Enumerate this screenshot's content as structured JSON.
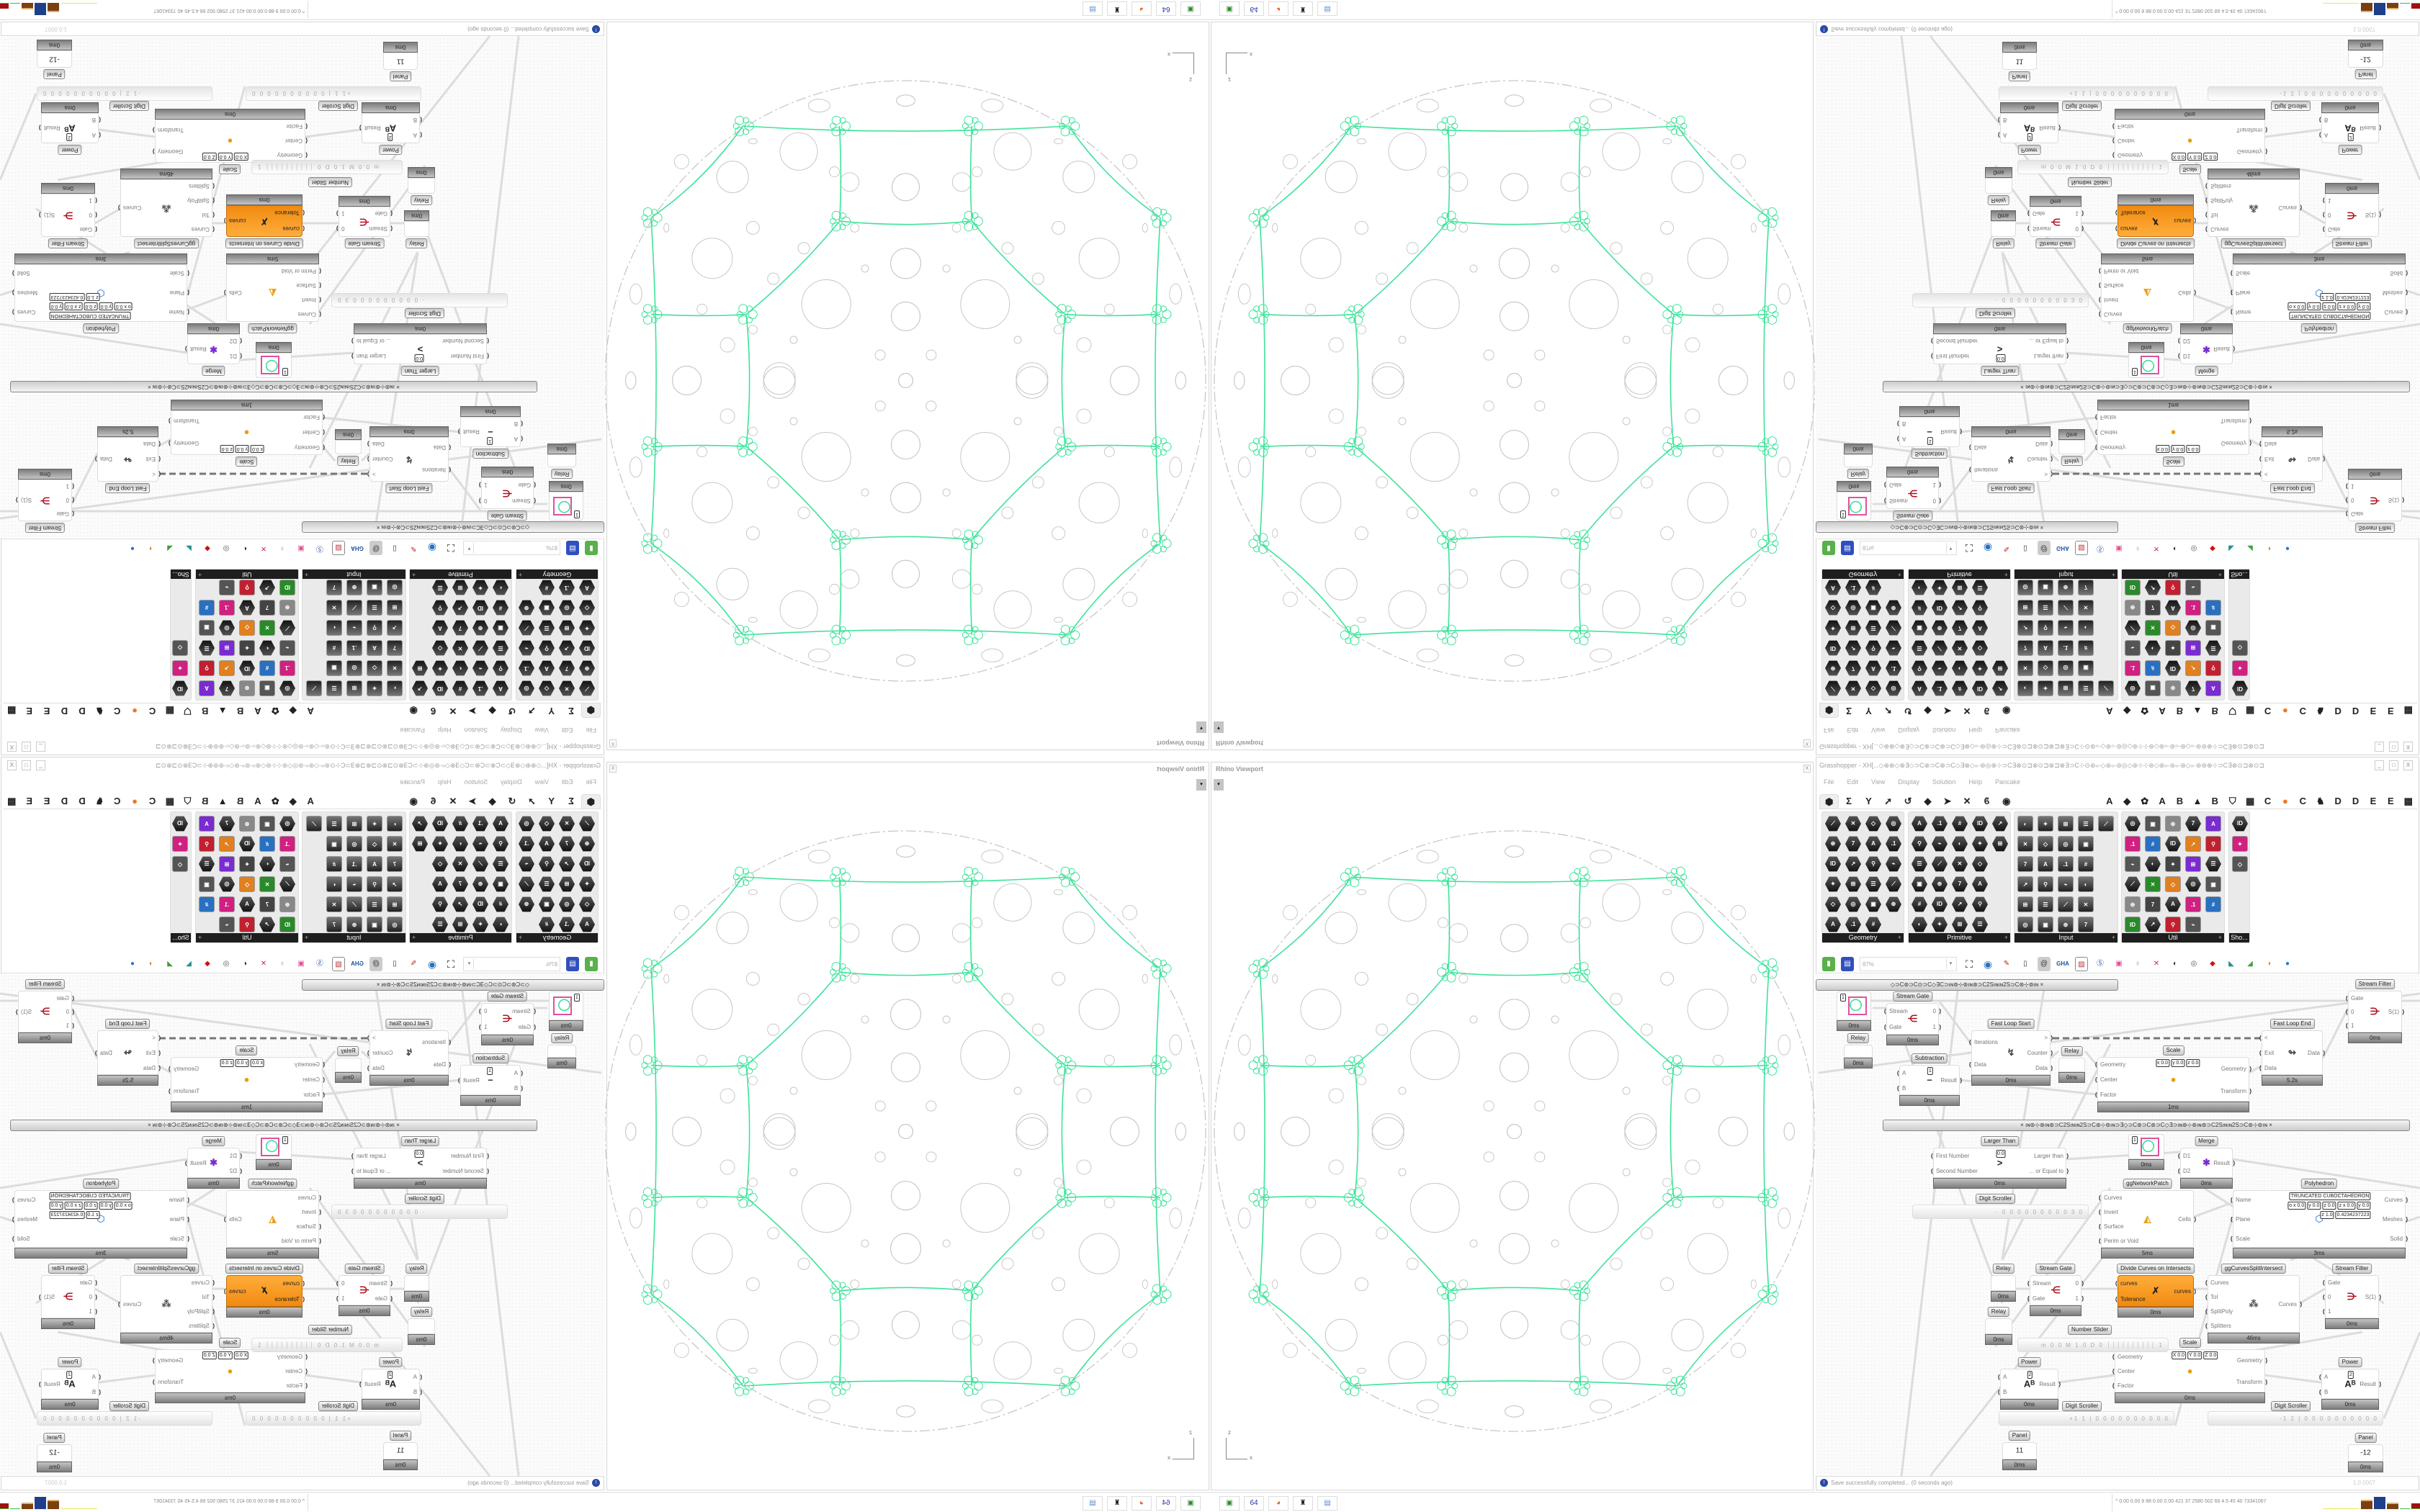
{
  "viewport": {
    "title": "Rhino Viewport",
    "close": "X",
    "dropdown": "▾",
    "axis_x": "x",
    "axis_z": "z",
    "colors": {
      "curves": "#3ee39a",
      "geometry": "#c8c8c8"
    }
  },
  "grasshopper": {
    "title": "Grasshopper - XH[...◇⊕⊕◇⊗∃◇⊃C⊗⊃C⊗⊃C◇∃⊗◇⟜⊛◎⊕⊹⊃C∃⊗⊙⊐⊗⊙⊐⊗⊐⊗∃⊃C⊹⊙⊛⟜◇⊛⟜⊚◎◇⊛⊹⊹⊛◇⊛⟜⊚⟜⊛◇⟜⊛⊚⊕⊹⊃C∃⊗⊙⊐⊗⊙⊐",
    "minimize": "_",
    "maximize": "□",
    "close": "X",
    "menu": [
      "File",
      "Edit",
      "View",
      "Display",
      "Solution",
      "Help",
      "Pancake"
    ],
    "tabs": [
      {
        "icon": "params-hexagon-icon",
        "glyph": "⬢"
      },
      {
        "icon": "maths-sigma-icon",
        "glyph": "Σ"
      },
      {
        "icon": "sets-icon",
        "glyph": "Y"
      },
      {
        "icon": "vector-icon",
        "glyph": "➚"
      },
      {
        "icon": "curve-icon",
        "glyph": "↺"
      },
      {
        "icon": "surface-icon",
        "glyph": "◆"
      },
      {
        "icon": "mesh-icon",
        "glyph": "➤"
      },
      {
        "icon": "intersect-icon",
        "glyph": "✕"
      },
      {
        "icon": "transform-icon",
        "glyph": "ϐ"
      },
      {
        "icon": "display-icon",
        "glyph": "◉"
      }
    ],
    "plugin_tabs": [
      "A",
      "◆",
      "✿",
      "A",
      "B",
      "▲",
      "B",
      "⛉",
      "▦",
      "C",
      "●",
      "C",
      "♞",
      "D",
      "D",
      "E",
      "E",
      "▩"
    ],
    "accent_tab_color": "#f07820",
    "toolbox": {
      "panels": [
        "Geometry",
        "Primitive",
        "Input",
        "Util",
        "Sho..."
      ],
      "expand": "+"
    },
    "zoom": "87%",
    "status": {
      "message": "Save successfully completed... (0 seconds ago)",
      "version": "1.0.0007"
    }
  },
  "canvas": {
    "group_bars": [
      "◇⊃C⊛⊃C⊙⊃C◇∃C⊃ıɴ⊚⊹⊛ıɴ⊛⊃C2Sıɴıɴ2S⊃C⊛⊹⊚ıɴ ×",
      "×   ıɴ⊚⊹⊛ıɴ⊛⊃C2Sıɴıɴ2S⊃C⊛⊹⊚ıɴ⊃∃◇⊃C⊛⊃C⊛⊃C◇∃⊃ıɴ⊚⊹⊛ıɴ⊛⊃C2Sıɴıɴ2S⊃C⊛⊹⊚ıɴ   ×"
    ],
    "nodes": [
      {
        "label": "Stream Gate",
        "in": [
          "Stream",
          "Gate"
        ],
        "out": [
          "0",
          "1"
        ],
        "time": "0ms",
        "icon": "stream-gate-icon",
        "glyph": "⋲",
        "glyph_color": "#b01020"
      },
      {
        "label": "Fast Loop Start",
        "in": [
          "Iterations",
          "Data"
        ],
        "out": [
          ">",
          "Counter",
          "Data"
        ],
        "time": "0ms",
        "icon": "loop-start-icon",
        "glyph": "↯",
        "glyph_color": "#444"
      },
      {
        "label": "Relay",
        "in": [],
        "out": [],
        "time": "0ms",
        "icon": "relay-icon",
        "glyph": "",
        "glyph_color": "#444"
      },
      {
        "label": "Scale",
        "in": [
          "Geometry",
          "Center",
          "Factor"
        ],
        "out": [
          "Geometry",
          "Transform"
        ],
        "time": "1ms",
        "icon": "scale-icon",
        "glyph": "●",
        "glyph_color": "#e8a010",
        "fields": [
          "x 0.0",
          "y 0.0",
          "z 0.0"
        ]
      },
      {
        "label": "Fast Loop End",
        "in": [
          "<",
          "Exit",
          "Data"
        ],
        "out": [
          "Data"
        ],
        "time": "5.2s",
        "icon": "loop-end-icon",
        "glyph": "↬",
        "glyph_color": "#444"
      },
      {
        "label": "Stream Filter",
        "in": [
          "Gate",
          "0",
          "1"
        ],
        "out": [
          "S(1)"
        ],
        "time": "0ms",
        "icon": "stream-filter-icon",
        "glyph": "⋺",
        "glyph_color": "#b01020"
      },
      {
        "label": "Subtraction",
        "in": [
          "A",
          "B"
        ],
        "out": [
          "Result"
        ],
        "time": "0ms",
        "icon": "minus-icon",
        "glyph": "−",
        "glyph_color": "#333",
        "fields": [
          "1"
        ]
      },
      {
        "label": "Relay",
        "in": [],
        "out": [],
        "time": "0ms",
        "icon": "relay-icon",
        "glyph": "",
        "glyph_color": "#444"
      },
      {
        "label": "Larger Than",
        "in": [
          "First Number",
          "Second Number"
        ],
        "out": [
          "Larger than",
          "... or Equal to"
        ],
        "time": "0ms",
        "icon": "larger-than-icon",
        "glyph": ">",
        "glyph_color": "#222",
        "fields": [
          "0.0"
        ]
      },
      {
        "label": "Merge",
        "in": [
          "D1",
          "D2"
        ],
        "out": [
          "Result"
        ],
        "time": "0ms",
        "icon": "merge-icon",
        "glyph": "✱",
        "glyph_color": "#7a2cd0"
      },
      {
        "label": "ggNetworkPatch",
        "in": [
          "Curves",
          "Invert",
          "Surface",
          "Perim or Void"
        ],
        "out": [
          "Cells"
        ],
        "time": "5ms",
        "icon": "network-patch-icon",
        "glyph": "◭",
        "glyph_color": "#e8a010"
      },
      {
        "label": "Polyhedron",
        "in": [
          "Name",
          "Plane",
          "Scale"
        ],
        "out": [
          "Curves",
          "Meshes",
          "Solid"
        ],
        "time": "3ms",
        "icon": "polyhedron-icon",
        "glyph": "⬡",
        "glyph_color": "#6aa0e8",
        "fields": [
          "TRUNCATED CUBOCTAHEDRON",
          "o x 0.0",
          "y 0.0",
          "z 0.0",
          "z x 0.0",
          "y 0.0",
          "z 1.0",
          "0.4234237223"
        ]
      },
      {
        "label": "Relay",
        "in": [],
        "out": [],
        "time": "0ms",
        "icon": "relay-icon",
        "glyph": "",
        "glyph_color": "#444"
      },
      {
        "label": "Relay",
        "in": [],
        "out": [],
        "time": "0ms",
        "icon": "relay-icon",
        "glyph": "",
        "glyph_color": "#444"
      },
      {
        "label": "Stream Gate",
        "in": [
          "Stream",
          "Gate"
        ],
        "out": [
          "0",
          "1"
        ],
        "time": "0ms",
        "icon": "stream-gate-icon",
        "glyph": "⋲",
        "glyph_color": "#b01020"
      },
      {
        "label": "Divide Curves on Intersects",
        "in": [
          "curves",
          "Tolerance"
        ],
        "out": [
          "curves"
        ],
        "time": "0ms",
        "icon": "divide-curves-icon",
        "glyph": "✗",
        "glyph_color": "#222",
        "orange": true
      },
      {
        "label": "ggCurvesSplitIntersect",
        "in": [
          "Curves",
          "Tol",
          "SplitPoly",
          "Splitters"
        ],
        "out": [
          "Curves"
        ],
        "time": "46ms",
        "icon": "curves-split-icon",
        "glyph": "⁂",
        "glyph_color": "#555"
      },
      {
        "label": "Stream Filter",
        "in": [
          "Gate",
          "0",
          "1"
        ],
        "out": [
          "S(1)"
        ],
        "time": "0ms",
        "icon": "stream-filter-icon",
        "glyph": "⋺",
        "glyph_color": "#b01020"
      },
      {
        "label": "Scale",
        "in": [
          "Geometry",
          "Center",
          "Factor"
        ],
        "out": [
          "Geometry",
          "Transform"
        ],
        "time": "0ms",
        "icon": "scale-icon",
        "glyph": "●",
        "glyph_color": "#e8a010",
        "fields": [
          "X 0.0",
          "Y 0.0",
          "Z 0.0"
        ]
      },
      {
        "label": "Power",
        "in": [
          "A",
          "B"
        ],
        "out": [
          "Result"
        ],
        "time": "0ms",
        "icon": "power-icon",
        "glyph": "Aᴮ",
        "glyph_color": "#222",
        "fields": [
          "2"
        ]
      },
      {
        "label": "Power",
        "in": [
          "A",
          "B"
        ],
        "out": [
          "Result"
        ],
        "time": "0ms",
        "icon": "power-icon",
        "glyph": "Aᴮ",
        "glyph_color": "#222",
        "fields": [
          "2"
        ]
      },
      {
        "label": "Panel",
        "in": [],
        "out": [],
        "time": "0ms",
        "icon": "panel-icon",
        "glyph": "11",
        "glyph_color": "#222"
      },
      {
        "label": "Panel",
        "in": [],
        "out": [],
        "time": "0ms",
        "icon": "panel-icon",
        "glyph": "-12",
        "glyph_color": "#222"
      },
      {
        "label": "",
        "in": [],
        "out": [],
        "time": "0ms",
        "icon": "preview-circle-icon",
        "glyph": "◯",
        "glyph_color": "#3ee39a",
        "fields": [
          "1"
        ]
      },
      {
        "label": "",
        "in": [],
        "out": [],
        "time": "0ms",
        "icon": "preview-circle-icon",
        "glyph": "◯",
        "glyph_color": "#3ee39a",
        "fields": [
          "1"
        ]
      }
    ],
    "sliders": [
      {
        "label": "Digit Scroller",
        "value": "· 0 0 0 0 0 0 0 0 0 3 0"
      },
      {
        "label": "Number Slider",
        "value": "m 0.0  M 1.0  D 0   ┊┊┊┊┊┊┊┊┊┊ 1"
      },
      {
        "label": "Digit Scroller",
        "value": "+1 1 | 0 0 0 0 0 0 0 0 0 0"
      },
      {
        "label": "Digit Scroller",
        "value": "-1 2 | 0 0 0 0 0 0 0 0 0 0"
      }
    ]
  },
  "taskbar": {
    "apps": [
      {
        "icon": "installer-icon",
        "glyph": "▣",
        "color": "#2a8a2a"
      },
      {
        "icon": "floppy-64-icon",
        "glyph": "64",
        "color": "#2233aa"
      },
      {
        "icon": "firefox-icon",
        "glyph": "◕",
        "color": "#e8601c"
      },
      {
        "icon": "rhino-icon",
        "glyph": "♜",
        "color": "#111"
      },
      {
        "icon": "calculator-icon",
        "glyph": "▤",
        "color": "#5a8ad0"
      }
    ],
    "readout": "^  0.00 0.00   9    88   0.00 0.00  421   37   2580  502   66   4.5   45   40  73341067"
  }
}
